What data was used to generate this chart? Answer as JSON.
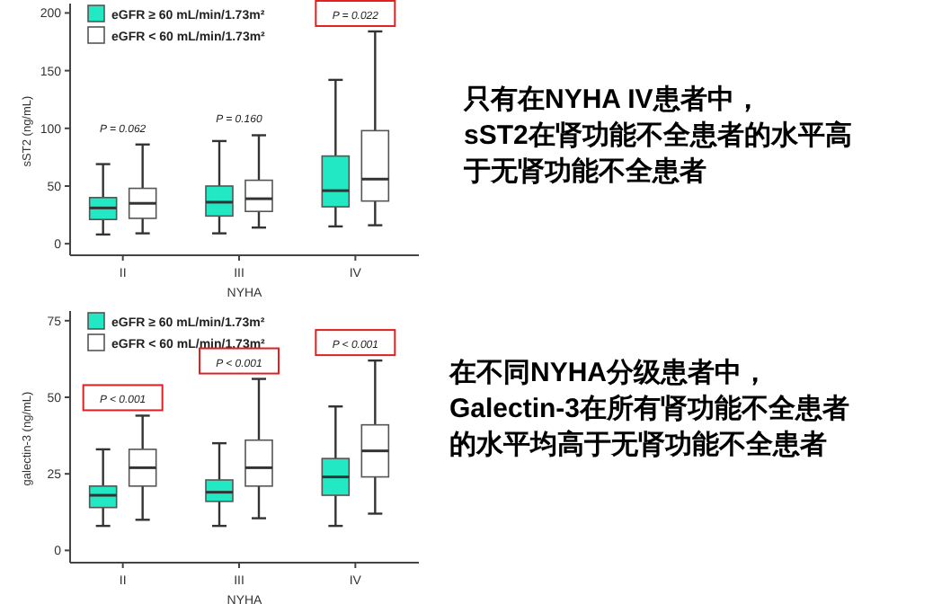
{
  "chart_data": [
    {
      "type": "box",
      "ylabel": "sST2 (ng/mL)",
      "xlabel": "NYHA",
      "categories": [
        "II",
        "III",
        "IV"
      ],
      "ylim": [
        -10,
        205
      ],
      "yticks": [
        0,
        50,
        100,
        150,
        200
      ],
      "legend": "top left",
      "series": [
        {
          "name": "eGFR ≥ 60 mL/min/1.73m²",
          "color": "#22e8c4",
          "boxes": [
            {
              "low": 8,
              "q1": 21,
              "median": 31,
              "q3": 40,
              "high": 69
            },
            {
              "low": 9,
              "q1": 24,
              "median": 36,
              "q3": 50,
              "high": 89
            },
            {
              "low": 15,
              "q1": 32,
              "median": 46,
              "q3": 76,
              "high": 142
            }
          ]
        },
        {
          "name": "eGFR < 60 mL/min/1.73m²",
          "color": "#ffffff",
          "boxes": [
            {
              "low": 9,
              "q1": 22,
              "median": 35,
              "q3": 48,
              "high": 86
            },
            {
              "low": 14,
              "q1": 28,
              "median": 39,
              "q3": 55,
              "high": 94
            },
            {
              "low": 16,
              "q1": 37,
              "median": 56,
              "q3": 98,
              "high": 184
            }
          ]
        }
      ],
      "annotations": [
        "P = 0.062",
        "P = 0.160",
        "P = 0.022"
      ]
    },
    {
      "type": "other",
      "annotations": [
        "只有在NYHA IV患者中，",
        "sST2在肾功能不全患者的水平高",
        "于无肾功能不全患者"
      ]
    },
    {
      "type": "box",
      "ylabel": "galectin-3 (ng/mL)",
      "xlabel": "NYHA",
      "categories": [
        "II",
        "III",
        "IV"
      ],
      "ylim": [
        -4,
        77
      ],
      "yticks": [
        0,
        25,
        50,
        75
      ],
      "legend": "top left",
      "series": [
        {
          "name": "eGFR ≥ 60 mL/min/1.73m²",
          "color": "#22e8c4",
          "boxes": [
            {
              "low": 8,
              "q1": 14,
              "median": 18,
              "q3": 21,
              "high": 33
            },
            {
              "low": 8,
              "q1": 16,
              "median": 19,
              "q3": 23,
              "high": 35
            },
            {
              "low": 8,
              "q1": 18,
              "median": 24,
              "q3": 30,
              "high": 47
            }
          ]
        },
        {
          "name": "eGFR < 60 mL/min/1.73m²",
          "color": "#ffffff",
          "boxes": [
            {
              "low": 10,
              "q1": 21,
              "median": 27,
              "q3": 33,
              "high": 44
            },
            {
              "low": 10.5,
              "q1": 21,
              "median": 27,
              "q3": 36,
              "high": 56
            },
            {
              "low": 12,
              "q1": 24,
              "median": 32.5,
              "q3": 41,
              "high": 62
            }
          ]
        }
      ],
      "annotations": [
        "P < 0.001",
        "P < 0.001",
        "P < 0.001"
      ]
    },
    {
      "type": "other",
      "annotations": [
        "在不同NYHA分级患者中，",
        "Galectin-3在所有肾功能不全患者",
        "的水平均高于无肾功能不全患者"
      ]
    }
  ]
}
